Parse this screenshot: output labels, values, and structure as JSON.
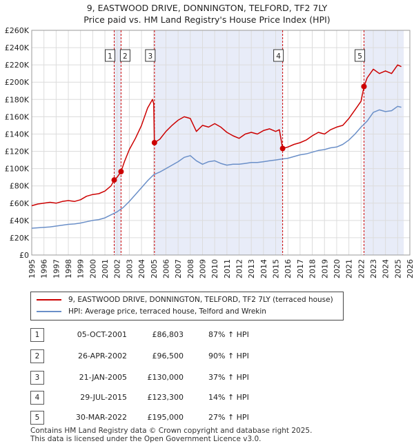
{
  "title_line1": "9, EASTWOOD DRIVE, DONNINGTON, TELFORD, TF2 7LY",
  "title_line2": "Price paid vs. HM Land Registry's House Price Index (HPI)",
  "chart_data": {
    "type": "line",
    "xlim": [
      1995,
      2026
    ],
    "ylim": [
      0,
      260000
    ],
    "x_ticks": [
      1995,
      1996,
      1997,
      1998,
      1999,
      2000,
      2001,
      2002,
      2003,
      2004,
      2005,
      2006,
      2007,
      2008,
      2009,
      2010,
      2011,
      2012,
      2013,
      2014,
      2015,
      2016,
      2017,
      2018,
      2019,
      2020,
      2021,
      2022,
      2023,
      2024,
      2025,
      2026
    ],
    "y_ticks": [
      0,
      20000,
      40000,
      60000,
      80000,
      100000,
      120000,
      140000,
      160000,
      180000,
      200000,
      220000,
      240000,
      260000
    ],
    "y_tick_labels": [
      "£0",
      "£20K",
      "£40K",
      "£60K",
      "£80K",
      "£100K",
      "£120K",
      "£140K",
      "£160K",
      "£180K",
      "£200K",
      "£220K",
      "£240K",
      "£260K"
    ],
    "grid": true,
    "colors": {
      "property": "#cc0000",
      "hpi": "#6a8fc8",
      "band": "#e8ecf8",
      "vline": "#cc0000"
    },
    "series": [
      {
        "name": "9, EASTWOOD DRIVE, DONNINGTON, TELFORD, TF2 7LY (terraced house)",
        "x": [
          1995.0,
          1995.5,
          1996.0,
          1996.5,
          1997.0,
          1997.5,
          1998.0,
          1998.5,
          1999.0,
          1999.5,
          2000.0,
          2000.5,
          2001.0,
          2001.5,
          2001.76,
          2002.0,
          2002.32,
          2002.6,
          2003.0,
          2003.5,
          2004.0,
          2004.5,
          2004.9,
          2005.0,
          2005.06,
          2005.5,
          2006.0,
          2006.5,
          2007.0,
          2007.5,
          2008.0,
          2008.5,
          2009.0,
          2009.5,
          2010.0,
          2010.5,
          2011.0,
          2011.5,
          2012.0,
          2012.5,
          2013.0,
          2013.5,
          2014.0,
          2014.5,
          2015.0,
          2015.3,
          2015.57,
          2016.0,
          2016.5,
          2017.0,
          2017.5,
          2018.0,
          2018.5,
          2019.0,
          2019.5,
          2020.0,
          2020.5,
          2021.0,
          2021.5,
          2022.0,
          2022.24,
          2022.5,
          2023.0,
          2023.5,
          2024.0,
          2024.5,
          2025.0,
          2025.3
        ],
        "values": [
          57000,
          59000,
          60000,
          61000,
          60000,
          62000,
          63000,
          62000,
          64000,
          68000,
          70000,
          71000,
          74000,
          80000,
          86803,
          90000,
          96500,
          108000,
          122000,
          135000,
          150000,
          170000,
          180000,
          175000,
          130000,
          134000,
          143000,
          150000,
          156000,
          160000,
          158000,
          143000,
          150000,
          148000,
          152000,
          148000,
          142000,
          138000,
          135000,
          140000,
          142000,
          140000,
          144000,
          146000,
          143000,
          145000,
          123300,
          125000,
          128000,
          130000,
          133000,
          138000,
          142000,
          140000,
          145000,
          148000,
          150000,
          158000,
          168000,
          178000,
          195000,
          205000,
          215000,
          210000,
          213000,
          210000,
          220000,
          218000
        ]
      },
      {
        "name": "HPI: Average price, terraced house, Telford and Wrekin",
        "x": [
          1995.0,
          1995.5,
          1996.0,
          1996.5,
          1997.0,
          1997.5,
          1998.0,
          1998.5,
          1999.0,
          1999.5,
          2000.0,
          2000.5,
          2001.0,
          2001.5,
          2002.0,
          2002.5,
          2003.0,
          2003.5,
          2004.0,
          2004.5,
          2005.0,
          2005.5,
          2006.0,
          2006.5,
          2007.0,
          2007.5,
          2008.0,
          2008.5,
          2009.0,
          2009.5,
          2010.0,
          2010.5,
          2011.0,
          2011.5,
          2012.0,
          2012.5,
          2013.0,
          2013.5,
          2014.0,
          2014.5,
          2015.0,
          2015.5,
          2016.0,
          2016.5,
          2017.0,
          2017.5,
          2018.0,
          2018.5,
          2019.0,
          2019.5,
          2020.0,
          2020.5,
          2021.0,
          2021.5,
          2022.0,
          2022.5,
          2023.0,
          2023.5,
          2024.0,
          2024.5,
          2025.0,
          2025.3
        ],
        "values": [
          31000,
          31500,
          32000,
          32500,
          33500,
          34500,
          35500,
          36000,
          37000,
          38500,
          40000,
          41000,
          43000,
          46500,
          50000,
          55000,
          62000,
          70000,
          78000,
          86000,
          93000,
          96000,
          100000,
          104000,
          108000,
          113000,
          115000,
          109000,
          105000,
          108000,
          109000,
          106000,
          104000,
          105000,
          105000,
          106000,
          107000,
          107000,
          108000,
          109000,
          110000,
          111000,
          112000,
          114000,
          116000,
          117000,
          119000,
          121000,
          122000,
          124000,
          125000,
          128000,
          133000,
          140000,
          148000,
          155000,
          165000,
          168000,
          166000,
          167000,
          172000,
          171000
        ]
      }
    ],
    "sales": [
      {
        "label": "1",
        "x": 2001.76,
        "value": 86803
      },
      {
        "label": "2",
        "x": 2002.32,
        "value": 96500
      },
      {
        "label": "3",
        "x": 2005.06,
        "value": 130000
      },
      {
        "label": "4",
        "x": 2015.57,
        "value": 123300
      },
      {
        "label": "5",
        "x": 2022.24,
        "value": 195000
      }
    ],
    "bands": [
      [
        2001.76,
        2002.32
      ],
      [
        2005.06,
        2015.57
      ],
      [
        2022.24,
        2025.5
      ]
    ]
  },
  "legend": {
    "property_label": "9, EASTWOOD DRIVE, DONNINGTON, TELFORD, TF2 7LY (terraced house)",
    "hpi_label": "HPI: Average price, terraced house, Telford and Wrekin"
  },
  "transactions": [
    {
      "num": "1",
      "date": "05-OCT-2001",
      "price": "£86,803",
      "pct": "87% ↑ HPI"
    },
    {
      "num": "2",
      "date": "26-APR-2002",
      "price": "£96,500",
      "pct": "90% ↑ HPI"
    },
    {
      "num": "3",
      "date": "21-JAN-2005",
      "price": "£130,000",
      "pct": "37% ↑ HPI"
    },
    {
      "num": "4",
      "date": "29-JUL-2015",
      "price": "£123,300",
      "pct": "14% ↑ HPI"
    },
    {
      "num": "5",
      "date": "30-MAR-2022",
      "price": "£195,000",
      "pct": "27% ↑ HPI"
    }
  ],
  "footer": {
    "line1": "Contains HM Land Registry data © Crown copyright and database right 2025.",
    "line2": "This data is licensed under the Open Government Licence v3.0."
  }
}
